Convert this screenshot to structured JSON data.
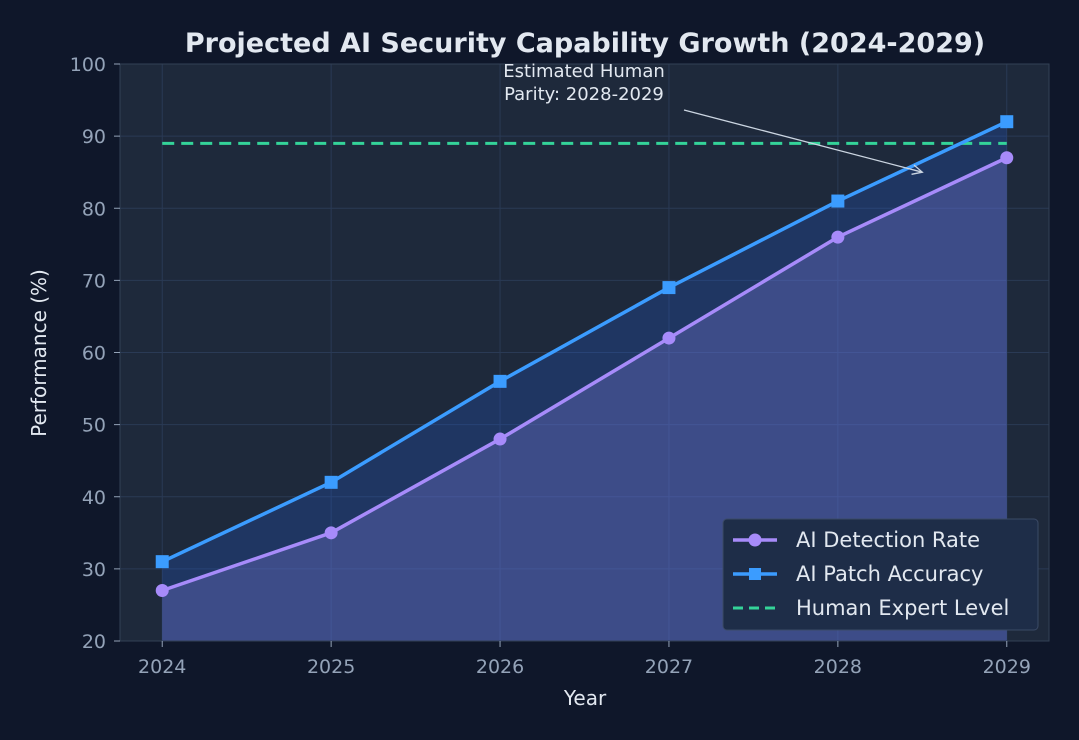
{
  "chart_data": {
    "type": "line",
    "title": "Projected AI Security Capability Growth (2024-2029)",
    "xlabel": "Year",
    "ylabel": "Performance (%)",
    "x": [
      2024,
      2025,
      2026,
      2027,
      2028,
      2029
    ],
    "x_tick_labels": [
      "2024",
      "2025",
      "2026",
      "2027",
      "2028",
      "2029"
    ],
    "ylim": [
      20,
      100
    ],
    "y_ticks": [
      20,
      30,
      40,
      50,
      60,
      70,
      80,
      90,
      100
    ],
    "grid": true,
    "legend_position": "bottom-right",
    "series": [
      {
        "name": "AI Detection Rate",
        "values": [
          27,
          35,
          48,
          62,
          76,
          87
        ],
        "color": "#a78bfa",
        "marker": "circle",
        "fill": true
      },
      {
        "name": "AI Patch Accuracy",
        "values": [
          31,
          42,
          56,
          69,
          81,
          92
        ],
        "color": "#3b9cff",
        "marker": "square",
        "fill": true
      },
      {
        "name": "Human Expert Level",
        "values": [
          89,
          89,
          89,
          89,
          89,
          89
        ],
        "color": "#34d399",
        "style": "dashed"
      }
    ],
    "annotation": {
      "lines": [
        "Estimated Human",
        "Parity: 2028-2029"
      ],
      "target_x": 2028.5,
      "target_y": 85
    }
  },
  "colors": {
    "background": "#0f172a",
    "plot_background": "#1e293b",
    "grid": "#2a3a55"
  }
}
